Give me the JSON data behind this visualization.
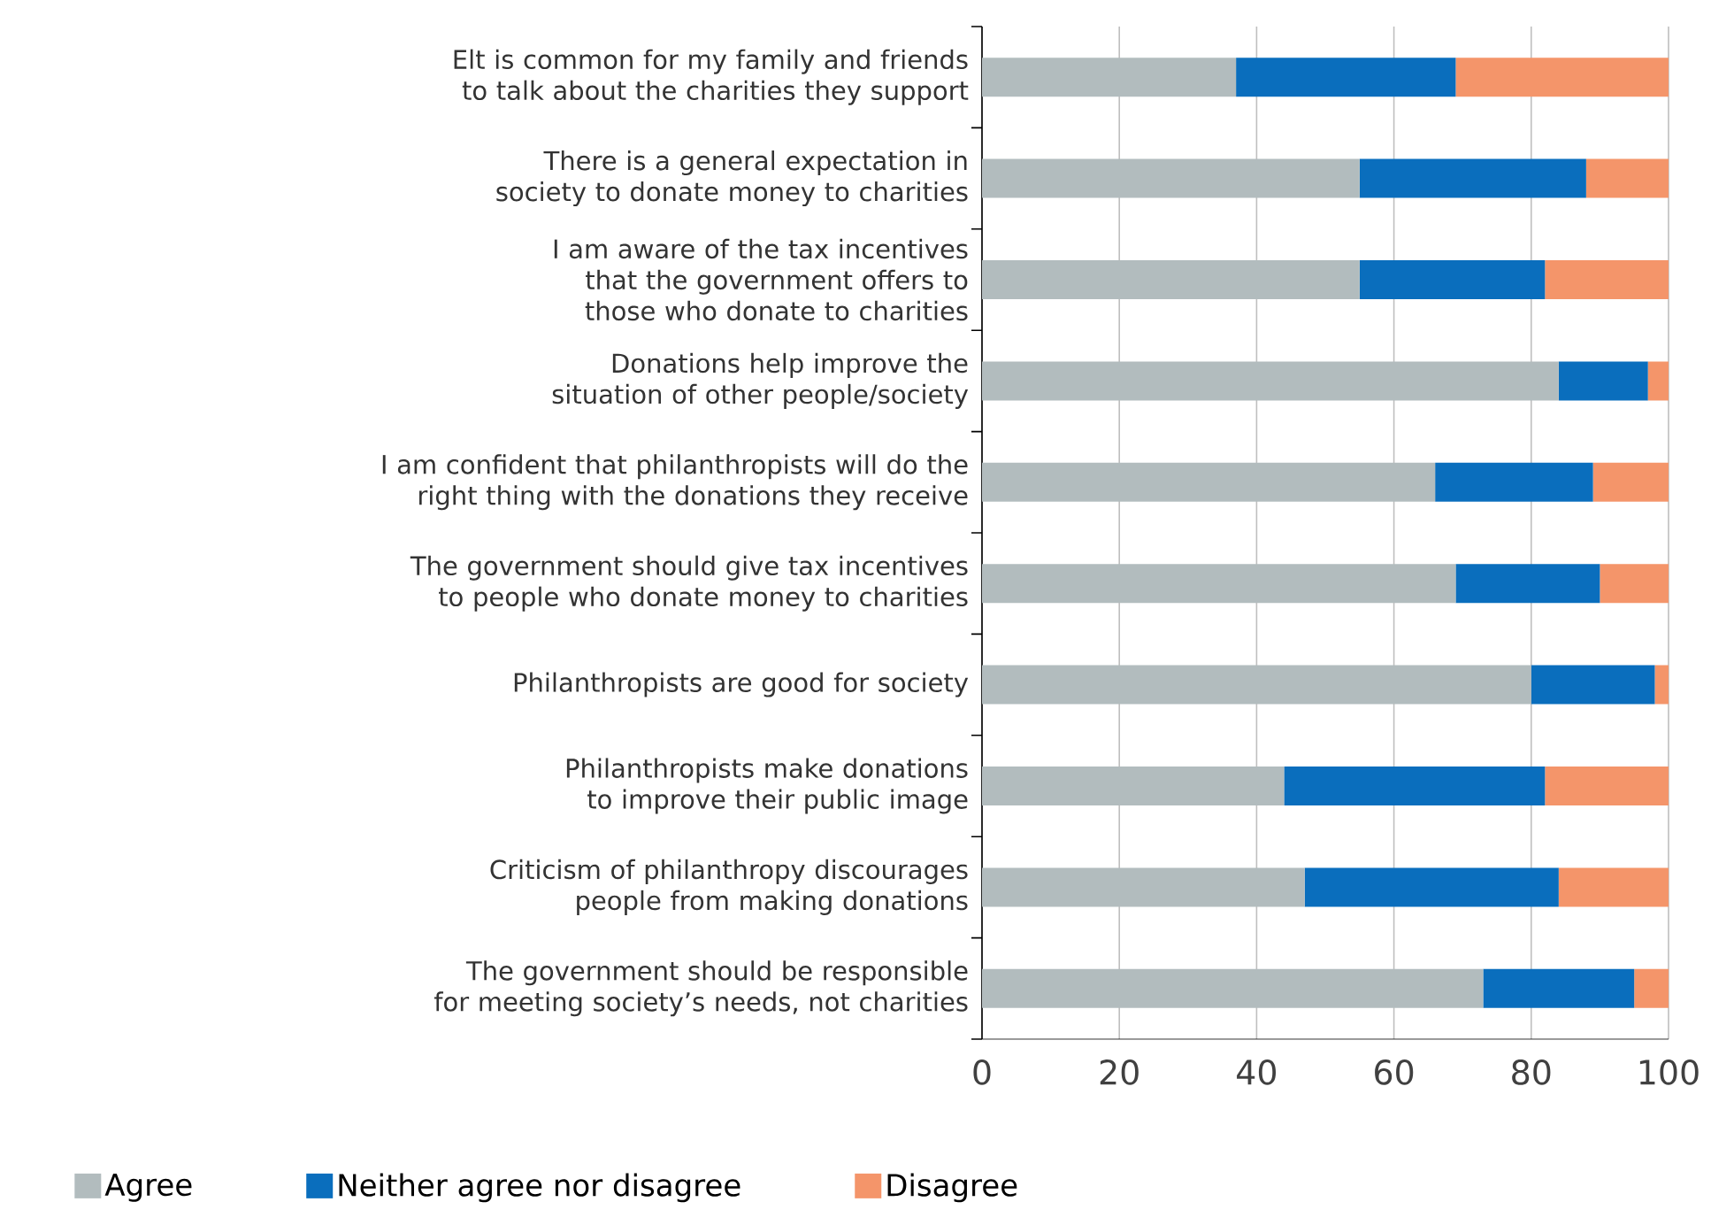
{
  "chart_data": {
    "type": "bar",
    "orientation": "horizontal",
    "stacked": true,
    "categories": [
      "Elt is common for my family and friends to talk about the charities they support",
      "There is a general expectation in society to donate money to charities",
      "I am aware of the tax incentives that the government offers to those who donate to charities",
      "Donations help improve the situation of other people/society",
      "I am confident that philanthropists will do the right thing with the donations they receive",
      "The government should give tax incentives to people who donate money to charities",
      "Philanthropists are good for society",
      "Philanthropists make donations to improve their public image",
      "Criticism of philanthropy discourages people from making donations",
      "The government should be responsible for meeting society’s needs, not charities"
    ],
    "series": [
      {
        "name": "Agree",
        "color": "#b2bcbe",
        "values": [
          37,
          55,
          55,
          84,
          66,
          69,
          80,
          44,
          47,
          73
        ]
      },
      {
        "name": "Neither agree nor disagree",
        "color": "#0a6ebd",
        "values": [
          32,
          33,
          27,
          13,
          23,
          21,
          18,
          38,
          37,
          22
        ]
      },
      {
        "name": "Disagree",
        "color": "#f4956a",
        "values": [
          31,
          12,
          18,
          3,
          11,
          10,
          2,
          18,
          16,
          5
        ]
      }
    ],
    "xlim": [
      0,
      100
    ],
    "xticks": [
      0,
      20,
      40,
      60,
      80,
      100
    ],
    "grid": "x",
    "legend": "bottom"
  }
}
